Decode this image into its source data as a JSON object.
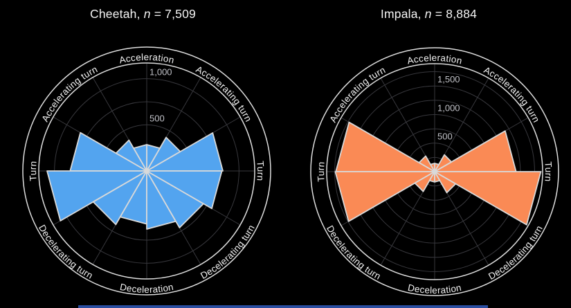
{
  "figure": {
    "background": "#000000",
    "bottom_bar_color": "#2a4da0",
    "grid_color": "#38383d",
    "ring_color": "#dedede",
    "wedge_outline_color": "#d9d9d9",
    "tick_label_color": "#c0c1c7",
    "band_label_color": "#f3f3f3"
  },
  "chart_data": [
    {
      "type": "polar_histogram",
      "title": "Cheetah, n = 7,509",
      "title_prefix": "Cheetah, ",
      "title_italic": "n",
      "title_suffix": " = 7,509",
      "n": 7509,
      "color": "#53a4ef",
      "axis_max": 1170,
      "grid_step": 250,
      "bin_edges_deg": [
        0,
        30,
        60,
        90,
        120,
        150,
        180,
        210,
        240,
        270,
        300,
        330,
        360
      ],
      "values": [
        825,
        420,
        285,
        285,
        385,
        830,
        1080,
        670,
        575,
        630,
        710,
        814
      ],
      "radial_ticks": [
        {
          "value": 500,
          "label": "500"
        },
        {
          "value": 1000,
          "label": "1,000"
        }
      ],
      "angle_labels": [
        {
          "angle": 90,
          "label": "Acceleration"
        },
        {
          "angle": 45,
          "label": "Accelerating turn"
        },
        {
          "angle": 135,
          "label": "Accelerating turn"
        },
        {
          "angle": 0,
          "label": "Turn"
        },
        {
          "angle": 180,
          "label": "Turn"
        },
        {
          "angle": 315,
          "label": "Decelerating turn"
        },
        {
          "angle": 225,
          "label": "Decelerating turn"
        },
        {
          "angle": 270,
          "label": "Deceleration"
        }
      ],
      "legend_position": "none",
      "grid": "on"
    },
    {
      "type": "polar_histogram",
      "title": "Impala, n = 8,884",
      "title_prefix": "Impala, ",
      "title_italic": "n",
      "title_suffix": " = 8,884",
      "n": 8884,
      "color": "#fa8a55",
      "axis_max": 1890,
      "grid_step": 250,
      "bin_edges_deg": [
        0,
        30,
        60,
        90,
        120,
        150,
        180,
        210,
        240,
        270,
        300,
        330,
        360
      ],
      "values": [
        1425,
        340,
        145,
        145,
        315,
        1730,
        1740,
        400,
        180,
        180,
        425,
        1859
      ],
      "radial_ticks": [
        {
          "value": 500,
          "label": "500"
        },
        {
          "value": 1000,
          "label": "1,000"
        },
        {
          "value": 1500,
          "label": "1,500"
        }
      ],
      "angle_labels": [
        {
          "angle": 90,
          "label": "Acceleration"
        },
        {
          "angle": 45,
          "label": "Accelerating turn"
        },
        {
          "angle": 135,
          "label": "Accelerating turn"
        },
        {
          "angle": 0,
          "label": "Turn"
        },
        {
          "angle": 180,
          "label": "Turn"
        },
        {
          "angle": 315,
          "label": "Decelerating turn"
        },
        {
          "angle": 225,
          "label": "Decelerating turn"
        },
        {
          "angle": 270,
          "label": "Deceleration"
        }
      ],
      "legend_position": "none",
      "grid": "on"
    }
  ]
}
